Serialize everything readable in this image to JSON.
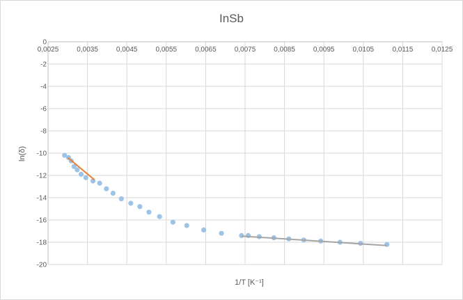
{
  "chart_data": {
    "type": "scatter",
    "title": "InSb",
    "xlabel": "1/T [K⁻¹]",
    "ylabel": "ln(δ)",
    "xlim": [
      0.0025,
      0.0125
    ],
    "ylim": [
      -20,
      0
    ],
    "x_ticks": [
      "0,0025",
      "0,0035",
      "0,0045",
      "0,0055",
      "0,0065",
      "0,0075",
      "0,0085",
      "0,0095",
      "0,0105",
      "0,0115",
      "0,0125"
    ],
    "y_ticks": [
      "0",
      "-2",
      "-4",
      "-6",
      "-8",
      "-10",
      "-12",
      "-14",
      "-16",
      "-18",
      "-20"
    ],
    "grid": true,
    "series": [
      {
        "color": "#9dc3e6",
        "x": [
          0.00292,
          0.00302,
          0.00309,
          0.00316,
          0.00324,
          0.00334,
          0.00346,
          0.00364,
          0.00381,
          0.00398,
          0.00415,
          0.00436,
          0.0046,
          0.00483,
          0.00506,
          0.00533,
          0.00567,
          0.00602,
          0.00645,
          0.0069,
          0.00741,
          0.00758,
          0.00786,
          0.00823,
          0.00861,
          0.00899,
          0.00942,
          0.00991,
          0.01043,
          0.0111
        ],
        "y": [
          -10.2,
          -10.4,
          -10.7,
          -11.2,
          -11.5,
          -11.9,
          -12.2,
          -12.5,
          -12.7,
          -13.2,
          -13.6,
          -14.1,
          -14.5,
          -14.8,
          -15.3,
          -15.7,
          -16.2,
          -16.5,
          -16.9,
          -17.2,
          -17.4,
          -17.4,
          -17.5,
          -17.6,
          -17.7,
          -17.8,
          -17.9,
          -18.0,
          -18.1,
          -18.2
        ]
      }
    ],
    "trendlines": [
      {
        "color": "#ed7d31",
        "x": [
          0.003,
          0.00368
        ],
        "y": [
          -10.4,
          -12.4
        ]
      },
      {
        "color": "#a5a5a5",
        "x": [
          0.00741,
          0.0111
        ],
        "y": [
          -17.45,
          -18.3
        ]
      }
    ]
  }
}
